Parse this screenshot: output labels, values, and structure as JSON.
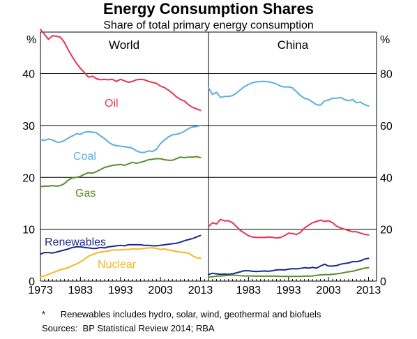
{
  "title": "Energy Consumption Shares",
  "subtitle": "Share of total primary energy consumption",
  "footnote": "*      Renewables includes hydro, solar, wind, geothermal and biofuels",
  "sources": "Sources:  BP Statistical Review 2014; RBA",
  "chart_data": [
    {
      "type": "line",
      "panel_title": "World",
      "unit_label": "%",
      "ylim": [
        0,
        48
      ],
      "yticks": [
        0,
        10,
        20,
        30,
        40
      ],
      "xlim": [
        1973,
        2015
      ],
      "xticks": [
        1973,
        1983,
        1993,
        2003,
        2013
      ],
      "xtick_labels": [
        "1973",
        "1983",
        "1993",
        "2003",
        "2013"
      ],
      "series": [
        {
          "name": "Oil",
          "color": "#e8334f",
          "x": [
            1973,
            1974,
            1975,
            1976,
            1977,
            1978,
            1979,
            1980,
            1981,
            1982,
            1983,
            1984,
            1985,
            1986,
            1987,
            1988,
            1989,
            1990,
            1991,
            1992,
            1993,
            1994,
            1995,
            1996,
            1997,
            1998,
            1999,
            2000,
            2001,
            2002,
            2003,
            2004,
            2005,
            2006,
            2007,
            2008,
            2009,
            2010,
            2011,
            2012,
            2013
          ],
          "values": [
            48.5,
            47.6,
            46.6,
            47.3,
            47.2,
            47.0,
            46.0,
            44.5,
            43.2,
            42.0,
            41.0,
            40.2,
            39.3,
            39.5,
            39.0,
            38.8,
            38.9,
            38.8,
            38.9,
            38.5,
            38.9,
            38.6,
            38.3,
            38.5,
            38.8,
            38.9,
            38.8,
            38.5,
            38.3,
            38.1,
            37.6,
            37.3,
            36.8,
            36.2,
            35.5,
            35.0,
            34.7,
            34.0,
            33.5,
            33.2,
            32.9
          ]
        },
        {
          "name": "Coal",
          "color": "#58b0dc",
          "x": [
            1973,
            1974,
            1975,
            1976,
            1977,
            1978,
            1979,
            1980,
            1981,
            1982,
            1983,
            1984,
            1985,
            1986,
            1987,
            1988,
            1989,
            1990,
            1991,
            1992,
            1993,
            1994,
            1995,
            1996,
            1997,
            1998,
            1999,
            2000,
            2001,
            2002,
            2003,
            2004,
            2005,
            2006,
            2007,
            2008,
            2009,
            2010,
            2011,
            2012,
            2013
          ],
          "values": [
            27.3,
            27.1,
            27.4,
            27.2,
            26.8,
            26.8,
            27.1,
            27.6,
            28.0,
            28.4,
            28.3,
            28.7,
            28.8,
            28.7,
            28.6,
            28.0,
            27.5,
            26.8,
            26.3,
            26.1,
            26.0,
            25.9,
            25.8,
            25.6,
            25.1,
            24.8,
            24.8,
            25.1,
            25.0,
            25.4,
            26.5,
            27.2,
            27.8,
            28.2,
            28.3,
            28.5,
            28.9,
            29.4,
            29.7,
            29.8,
            30.0
          ]
        },
        {
          "name": "Gas",
          "color": "#5b8c2a",
          "x": [
            1973,
            1974,
            1975,
            1976,
            1977,
            1978,
            1979,
            1980,
            1981,
            1982,
            1983,
            1984,
            1985,
            1986,
            1987,
            1988,
            1989,
            1990,
            1991,
            1992,
            1993,
            1994,
            1995,
            1996,
            1997,
            1998,
            1999,
            2000,
            2001,
            2002,
            2003,
            2004,
            2005,
            2006,
            2007,
            2008,
            2009,
            2010,
            2011,
            2012,
            2013
          ],
          "values": [
            18.2,
            18.3,
            18.3,
            18.4,
            18.3,
            18.4,
            18.8,
            19.5,
            19.9,
            20.0,
            20.2,
            20.6,
            20.9,
            20.8,
            21.1,
            21.5,
            21.9,
            22.1,
            22.3,
            22.4,
            22.5,
            22.3,
            22.6,
            22.9,
            22.7,
            22.9,
            23.1,
            23.4,
            23.5,
            23.6,
            23.6,
            23.4,
            23.3,
            23.3,
            23.6,
            23.9,
            23.8,
            23.9,
            23.9,
            24.0,
            23.8
          ]
        },
        {
          "name": "Renewables",
          "color": "#1c2a8c",
          "x": [
            1973,
            1974,
            1975,
            1976,
            1977,
            1978,
            1979,
            1980,
            1981,
            1982,
            1983,
            1984,
            1985,
            1986,
            1987,
            1988,
            1989,
            1990,
            1991,
            1992,
            1993,
            1994,
            1995,
            1996,
            1997,
            1998,
            1999,
            2000,
            2001,
            2002,
            2003,
            2004,
            2005,
            2006,
            2007,
            2008,
            2009,
            2010,
            2011,
            2012,
            2013
          ],
          "values": [
            5.2,
            5.5,
            5.5,
            5.4,
            5.6,
            5.8,
            6.0,
            6.2,
            6.5,
            6.6,
            6.6,
            6.5,
            6.4,
            6.3,
            6.3,
            6.5,
            6.4,
            6.6,
            6.7,
            6.8,
            6.9,
            6.8,
            7.0,
            7.0,
            7.0,
            7.0,
            6.9,
            6.9,
            6.8,
            6.8,
            6.9,
            7.0,
            7.1,
            7.2,
            7.3,
            7.5,
            7.8,
            8.0,
            8.2,
            8.5,
            8.8
          ]
        },
        {
          "name": "Nuclear",
          "color": "#f5b820",
          "x": [
            1973,
            1974,
            1975,
            1976,
            1977,
            1978,
            1979,
            1980,
            1981,
            1982,
            1983,
            1984,
            1985,
            1986,
            1987,
            1988,
            1989,
            1990,
            1991,
            1992,
            1993,
            1994,
            1995,
            1996,
            1997,
            1998,
            1999,
            2000,
            2001,
            2002,
            2003,
            2004,
            2005,
            2006,
            2007,
            2008,
            2009,
            2010,
            2011,
            2012,
            2013
          ],
          "values": [
            0.8,
            1.0,
            1.3,
            1.6,
            1.9,
            2.2,
            2.4,
            2.6,
            3.0,
            3.3,
            3.7,
            4.2,
            4.8,
            5.1,
            5.4,
            5.6,
            5.7,
            5.8,
            6.0,
            6.0,
            6.0,
            6.1,
            6.1,
            6.2,
            6.2,
            6.2,
            6.3,
            6.4,
            6.4,
            6.3,
            6.1,
            6.2,
            6.0,
            5.9,
            5.7,
            5.6,
            5.5,
            5.4,
            4.9,
            4.5,
            4.4
          ]
        }
      ]
    },
    {
      "type": "line",
      "panel_title": "China",
      "unit_label": "%",
      "ylim": [
        0,
        96
      ],
      "yticks": [
        0,
        20,
        40,
        60,
        80
      ],
      "xlim": [
        1973,
        2015
      ],
      "xticks": [
        1983,
        1993,
        2003,
        2013
      ],
      "xtick_labels": [
        "1983",
        "1993",
        "2003",
        "2013"
      ],
      "series": [
        {
          "name": "Coal",
          "color": "#58b0dc",
          "x": [
            1973,
            1974,
            1975,
            1976,
            1977,
            1978,
            1979,
            1980,
            1981,
            1982,
            1983,
            1984,
            1985,
            1986,
            1987,
            1988,
            1989,
            1990,
            1991,
            1992,
            1993,
            1994,
            1995,
            1996,
            1997,
            1998,
            1999,
            2000,
            2001,
            2002,
            2003,
            2004,
            2005,
            2006,
            2007,
            2008,
            2009,
            2010,
            2011,
            2012,
            2013
          ],
          "values": [
            74.5,
            72.0,
            72.8,
            70.8,
            71.2,
            71.2,
            71.5,
            72.5,
            73.8,
            75.0,
            75.8,
            76.5,
            76.8,
            77.0,
            77.0,
            76.8,
            76.5,
            76.0,
            75.2,
            74.8,
            74.9,
            74.5,
            73.0,
            71.5,
            70.5,
            70.0,
            69.0,
            68.0,
            67.8,
            69.5,
            69.8,
            70.5,
            70.5,
            70.8,
            70.0,
            69.5,
            70.0,
            68.8,
            69.0,
            68.0,
            67.5
          ]
        },
        {
          "name": "Oil",
          "color": "#e8334f",
          "x": [
            1973,
            1974,
            1975,
            1976,
            1977,
            1978,
            1979,
            1980,
            1981,
            1982,
            1983,
            1984,
            1985,
            1986,
            1987,
            1988,
            1989,
            1990,
            1991,
            1992,
            1993,
            1994,
            1995,
            1996,
            1997,
            1998,
            1999,
            2000,
            2001,
            2002,
            2003,
            2004,
            2005,
            2006,
            2007,
            2008,
            2009,
            2010,
            2011,
            2012,
            2013
          ],
          "values": [
            21.0,
            22.5,
            22.0,
            23.8,
            23.2,
            23.3,
            22.5,
            21.0,
            19.5,
            18.5,
            17.5,
            17.0,
            16.8,
            16.9,
            16.8,
            17.0,
            16.9,
            16.6,
            16.8,
            17.5,
            18.5,
            18.3,
            18.0,
            18.8,
            20.5,
            21.5,
            22.5,
            23.0,
            23.5,
            23.0,
            23.3,
            22.5,
            21.2,
            20.5,
            20.0,
            19.5,
            19.0,
            19.0,
            18.5,
            18.0,
            17.8
          ]
        },
        {
          "name": "Renewables",
          "color": "#1c2a8c",
          "x": [
            1973,
            1974,
            1975,
            1976,
            1977,
            1978,
            1979,
            1980,
            1981,
            1982,
            1983,
            1984,
            1985,
            1986,
            1987,
            1988,
            1989,
            1990,
            1991,
            1992,
            1993,
            1994,
            1995,
            1996,
            1997,
            1998,
            1999,
            2000,
            2001,
            2002,
            2003,
            2004,
            2005,
            2006,
            2007,
            2008,
            2009,
            2010,
            2011,
            2012,
            2013
          ],
          "values": [
            2.5,
            3.0,
            2.8,
            2.6,
            2.7,
            2.6,
            2.8,
            3.2,
            3.6,
            4.0,
            4.0,
            3.8,
            3.7,
            3.8,
            3.9,
            3.8,
            4.0,
            4.3,
            4.4,
            4.3,
            4.6,
            4.8,
            4.7,
            4.9,
            5.2,
            5.0,
            5.3,
            5.0,
            5.8,
            6.5,
            5.8,
            5.8,
            6.0,
            6.5,
            6.8,
            7.0,
            7.5,
            7.5,
            7.8,
            8.5,
            8.8
          ]
        },
        {
          "name": "Gas",
          "color": "#5b8c2a",
          "x": [
            1973,
            1974,
            1975,
            1976,
            1977,
            1978,
            1979,
            1980,
            1981,
            1982,
            1983,
            1984,
            1985,
            1986,
            1987,
            1988,
            1989,
            1990,
            1991,
            1992,
            1993,
            1994,
            1995,
            1996,
            1997,
            1998,
            1999,
            2000,
            2001,
            2002,
            2003,
            2004,
            2005,
            2006,
            2007,
            2008,
            2009,
            2010,
            2011,
            2012,
            2013
          ],
          "values": [
            1.5,
            1.7,
            1.9,
            2.0,
            2.1,
            2.2,
            2.3,
            2.2,
            2.1,
            2.0,
            2.0,
            2.0,
            1.9,
            1.9,
            1.9,
            1.9,
            1.9,
            1.9,
            1.8,
            1.8,
            1.8,
            1.8,
            1.8,
            1.8,
            1.9,
            1.9,
            2.0,
            2.2,
            2.4,
            2.5,
            2.5,
            2.6,
            2.8,
            3.0,
            3.3,
            3.6,
            3.8,
            4.2,
            4.6,
            5.0,
            5.2
          ]
        }
      ]
    }
  ]
}
